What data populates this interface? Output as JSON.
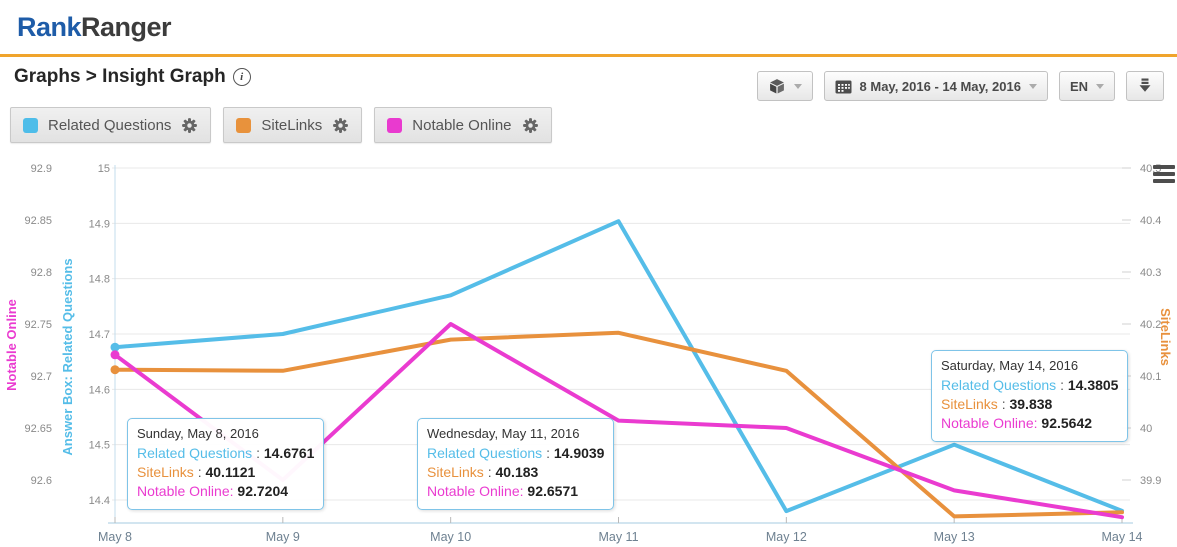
{
  "header": {
    "logo_part1": "Rank",
    "logo_part2": "Ranger"
  },
  "page": {
    "title": "Graphs > Insight Graph",
    "info_glyph": "i"
  },
  "toolbar": {
    "date_range": "8 May, 2016 - 14 May, 2016",
    "language": "EN"
  },
  "legend_buttons": [
    {
      "label": "Related Questions",
      "color": "#4EBDE9"
    },
    {
      "label": "SiteLinks",
      "color": "#E8923C"
    },
    {
      "label": "Notable Online",
      "color": "#E93ACF"
    }
  ],
  "tooltips": [
    {
      "date": "Sunday, May 8, 2016",
      "rows": [
        {
          "label": "Related Questions",
          "sep": " : ",
          "value": "14.6761"
        },
        {
          "label": "SiteLinks",
          "sep": " : ",
          "value": "40.1121"
        },
        {
          "label": "Notable Online:",
          "sep": " ",
          "value": "92.7204"
        }
      ]
    },
    {
      "date": "Wednesday, May 11, 2016",
      "rows": [
        {
          "label": "Related Questions",
          "sep": " : ",
          "value": "14.9039"
        },
        {
          "label": "SiteLinks",
          "sep": " : ",
          "value": "40.183"
        },
        {
          "label": "Notable Online:",
          "sep": " ",
          "value": "92.6571"
        }
      ]
    },
    {
      "date": "Saturday, May 14, 2016",
      "rows": [
        {
          "label": "Related Questions",
          "sep": " : ",
          "value": "14.3805"
        },
        {
          "label": "SiteLinks",
          "sep": " : ",
          "value": "39.838"
        },
        {
          "label": "Notable Online:",
          "sep": " ",
          "value": "92.5642"
        }
      ]
    }
  ],
  "chart_data": {
    "type": "line",
    "x": [
      "May 8",
      "May 9",
      "May 10",
      "May 11",
      "May 12",
      "May 13",
      "May 14"
    ],
    "series": [
      {
        "name": "Related Questions",
        "axis": "blue",
        "color": "#55BDE8",
        "values": [
          14.6761,
          14.7,
          14.77,
          14.9039,
          14.38,
          14.5,
          14.3805
        ]
      },
      {
        "name": "SiteLinks",
        "axis": "orange",
        "color": "#E8913D",
        "values": [
          40.1121,
          40.11,
          40.17,
          40.183,
          40.11,
          39.83,
          39.838
        ]
      },
      {
        "name": "Notable Online",
        "axis": "magenta",
        "color": "#EA3BD0",
        "values": [
          92.7204,
          92.6,
          92.75,
          92.6571,
          92.65,
          92.59,
          92.5642
        ]
      }
    ],
    "axes": {
      "magenta": {
        "title": "Notable Online",
        "color": "#EA3BD0",
        "ticks": [
          "92.9",
          "92.85",
          "92.8",
          "92.75",
          "92.7",
          "92.65",
          "92.6"
        ],
        "range": [
          92.9,
          92.6
        ],
        "side": "left-outer"
      },
      "blue": {
        "title": "Answer Box: Related Questions",
        "color": "#55BDE8",
        "ticks": [
          "15",
          "14.9",
          "14.8",
          "14.7",
          "14.6",
          "14.5",
          "14.4"
        ],
        "range": [
          15,
          14.4
        ],
        "side": "left-inner"
      },
      "orange": {
        "title": "SiteLinks",
        "color": "#E8913D",
        "ticks": [
          "40.5",
          "40.4",
          "40.3",
          "40.2",
          "40.1",
          "40",
          "39.9"
        ],
        "range": [
          40.5,
          39.9
        ],
        "side": "right"
      }
    },
    "grid": true,
    "legend_position": "top-left-buttons"
  }
}
